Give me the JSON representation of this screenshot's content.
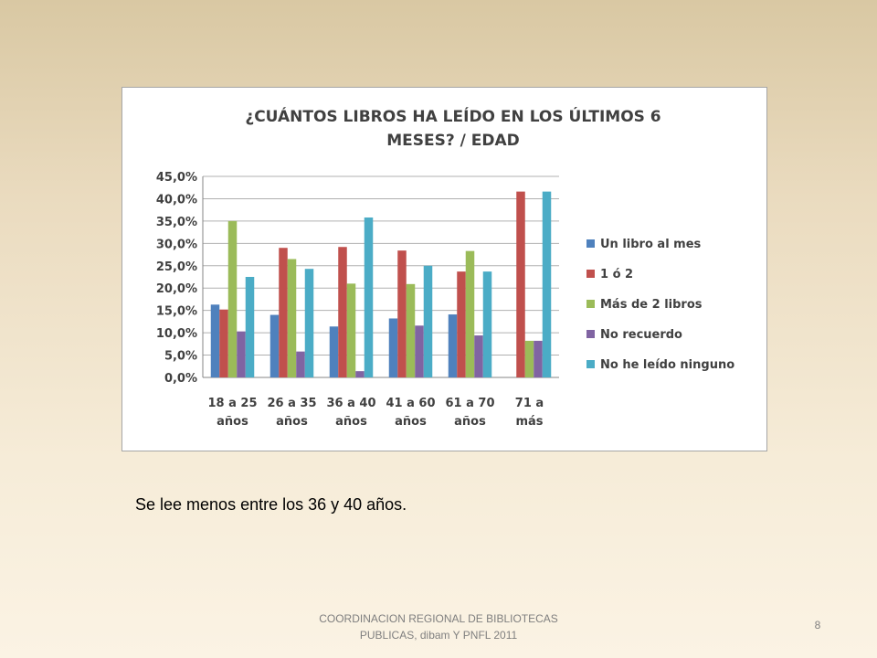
{
  "caption": "Se lee menos entre los 36 y 40 años.",
  "footer": {
    "line1": "COORDINACION REGIONAL DE BIBLIOTECAS",
    "line2": "PUBLICAS, dibam Y PNFL 2011",
    "page_number": "8"
  },
  "chart_data": {
    "type": "bar",
    "title_lines": [
      "¿CUÁNTOS LIBROS HA LEÍDO EN LOS ÚLTIMOS 6",
      "MESES? / EDAD"
    ],
    "categories": [
      [
        "18 a 25",
        "años"
      ],
      [
        "26 a 35",
        "años"
      ],
      [
        "36 a 40",
        "años"
      ],
      [
        "41 a 60",
        "años"
      ],
      [
        "61 a 70",
        "años"
      ],
      [
        "71 a",
        "más"
      ]
    ],
    "y_ticks": [
      "0,0%",
      "5,0%",
      "10,0%",
      "15,0%",
      "20,0%",
      "25,0%",
      "30,0%",
      "35,0%",
      "40,0%",
      "45,0%"
    ],
    "ylim": [
      0,
      45
    ],
    "grid": true,
    "legend_position": "right",
    "series": [
      {
        "name": "Un libro al mes",
        "color": "#4f81bd",
        "values": [
          16.3,
          14.0,
          11.4,
          13.2,
          14.1,
          0
        ]
      },
      {
        "name": "1 ó 2",
        "color": "#c0504d",
        "values": [
          15.2,
          29.0,
          29.2,
          28.4,
          23.7,
          41.6
        ]
      },
      {
        "name": "Más de 2 libros",
        "color": "#9bbb59",
        "values": [
          35.0,
          26.5,
          21.0,
          20.9,
          28.3,
          8.2
        ]
      },
      {
        "name": "No recuerdo",
        "color": "#8064a2",
        "values": [
          10.3,
          5.8,
          1.4,
          11.6,
          9.4,
          8.2
        ]
      },
      {
        "name": "No he leído ninguno",
        "color": "#4bacc6",
        "values": [
          22.5,
          24.3,
          35.8,
          25.0,
          23.7,
          41.6
        ]
      }
    ]
  }
}
